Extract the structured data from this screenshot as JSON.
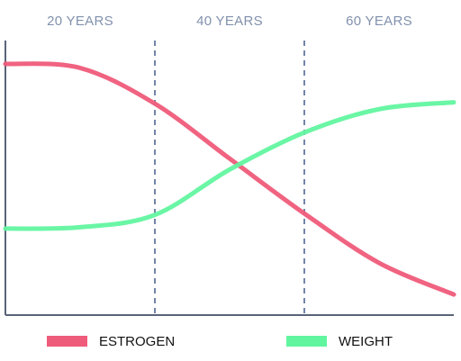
{
  "chart_data": {
    "type": "line",
    "x_categories": [
      "20 YEARS",
      "40 YEARS",
      "60 YEARS"
    ],
    "y_range": [
      0,
      100
    ],
    "grid": false,
    "legend_position": "bottom",
    "series": [
      {
        "name": "ESTROGEN",
        "color": "#ef5b7a",
        "points": [
          {
            "x": 0.0,
            "y": 91.5
          },
          {
            "x": 0.5,
            "y": 90
          },
          {
            "x": 1.0,
            "y": 77
          },
          {
            "x": 1.5,
            "y": 57
          },
          {
            "x": 2.0,
            "y": 37
          },
          {
            "x": 2.5,
            "y": 19
          },
          {
            "x": 3.0,
            "y": 7.5
          }
        ]
      },
      {
        "name": "WEIGHT",
        "color": "#62f5a0",
        "points": [
          {
            "x": 0.0,
            "y": 31.5
          },
          {
            "x": 0.5,
            "y": 32
          },
          {
            "x": 1.0,
            "y": 36.5
          },
          {
            "x": 1.5,
            "y": 53
          },
          {
            "x": 2.0,
            "y": 66.5
          },
          {
            "x": 2.5,
            "y": 75
          },
          {
            "x": 3.0,
            "y": 77.5
          }
        ]
      }
    ],
    "colors": {
      "axis": "#5a6478",
      "divider": "#7384a8",
      "era_label": "#8191ad"
    }
  }
}
